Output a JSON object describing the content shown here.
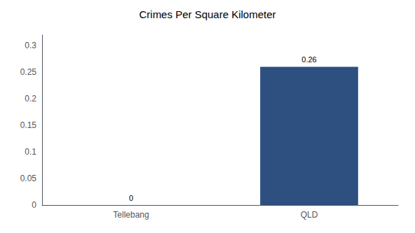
{
  "chart_data": {
    "type": "bar",
    "title": "Crimes Per Square Kilometer",
    "categories": [
      "Tellebang",
      "QLD"
    ],
    "values": [
      0,
      0.26
    ],
    "colors": [
      "#3a5a8a",
      "#2d5080"
    ],
    "ylim": [
      0,
      0.32
    ],
    "yticks": [
      0,
      0.05,
      0.1,
      0.15,
      0.2,
      0.25,
      0.3
    ],
    "data_labels": true,
    "grid": false
  }
}
